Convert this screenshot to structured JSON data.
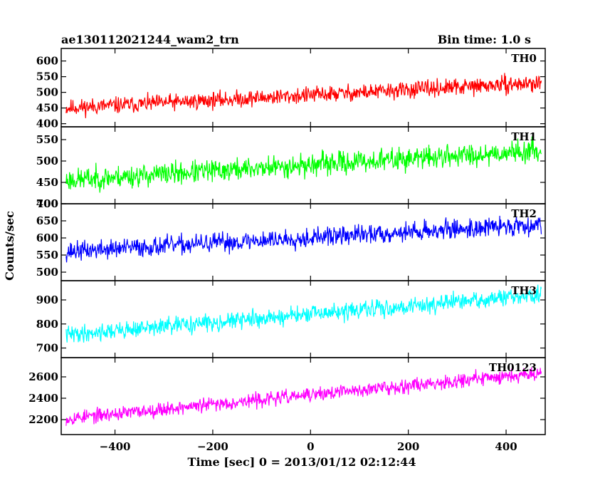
{
  "chart_data": {
    "type": "line",
    "title_left": "ae130112021244_wam2_trn",
    "title_right": "Bin time: 1.0 s",
    "xlabel": "Time [sec] 0 = 2013/01/12 02:12:44",
    "ylabel": "Counts/sec",
    "x_range": [
      -510,
      480
    ],
    "x_ticks": [
      -400,
      -200,
      0,
      200,
      400
    ],
    "x_tick_labels": [
      "−400",
      "−200",
      "0",
      "200",
      "400"
    ],
    "bin_time_s": 1.0,
    "panels": [
      {
        "label": "TH0",
        "color": "#ff0000",
        "ylim": [
          390,
          640
        ],
        "yticks": [
          400,
          450,
          500,
          550,
          600
        ],
        "trend_start": 450,
        "trend_end": 530,
        "noise": 28,
        "seed": 11
      },
      {
        "label": "TH1",
        "color": "#00ff00",
        "ylim": [
          400,
          580
        ],
        "yticks": [
          400,
          450,
          500,
          550
        ],
        "trend_start": 455,
        "trend_end": 525,
        "noise": 28,
        "seed": 23
      },
      {
        "label": "TH2",
        "color": "#0000ff",
        "ylim": [
          475,
          700
        ],
        "yticks": [
          500,
          550,
          600,
          650,
          700
        ],
        "trend_start": 560,
        "trend_end": 640,
        "noise": 30,
        "seed": 37
      },
      {
        "label": "TH3",
        "color": "#00ffff",
        "ylim": [
          660,
          980
        ],
        "yticks": [
          700,
          800,
          900
        ],
        "trend_start": 755,
        "trend_end": 920,
        "noise": 38,
        "seed": 41
      },
      {
        "label": "TH0123",
        "color": "#ff00ff",
        "ylim": [
          2060,
          2780
        ],
        "yticks": [
          2200,
          2400,
          2600
        ],
        "trend_start": 2210,
        "trend_end": 2640,
        "noise": 70,
        "seed": 53
      }
    ]
  }
}
